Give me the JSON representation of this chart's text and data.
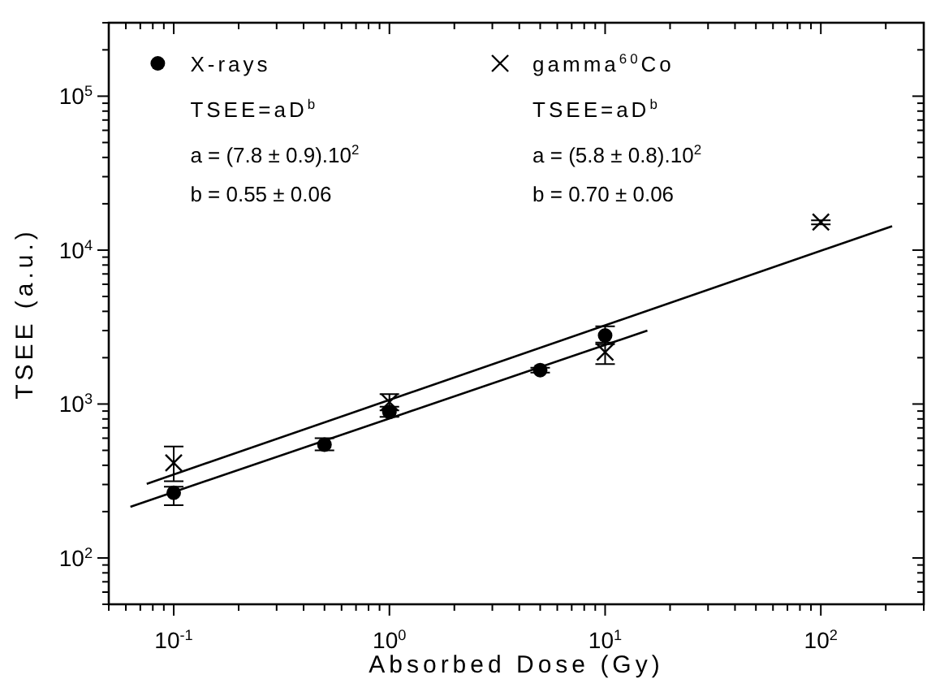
{
  "chart_data": {
    "type": "scatter",
    "xlabel": "Absorbed Dose (Gy)",
    "ylabel": "TSEE  (a.u.)",
    "log": "xy",
    "grid": false,
    "legend": "top",
    "xlim": [
      0.05,
      300
    ],
    "ylim": [
      50,
      300000
    ],
    "xticks": [
      {
        "value": 0.05,
        "label": null
      },
      {
        "value": 0.06,
        "label": null
      },
      {
        "value": 0.07,
        "label": null
      },
      {
        "value": 0.08,
        "label": null
      },
      {
        "value": 0.09,
        "label": null
      },
      {
        "value": 0.1,
        "label": "10$^{-1}$"
      },
      {
        "value": 0.2,
        "label": null
      },
      {
        "value": 0.3,
        "label": null
      },
      {
        "value": 0.4,
        "label": null
      },
      {
        "value": 0.5,
        "label": null
      },
      {
        "value": 0.6,
        "label": null
      },
      {
        "value": 0.7,
        "label": null
      },
      {
        "value": 0.8,
        "label": null
      },
      {
        "value": 0.9,
        "label": null
      },
      {
        "value": 1,
        "label": "10$^{0}$"
      },
      {
        "value": 2,
        "label": null
      },
      {
        "value": 3,
        "label": null
      },
      {
        "value": 4,
        "label": null
      },
      {
        "value": 5,
        "label": null
      },
      {
        "value": 6,
        "label": null
      },
      {
        "value": 7,
        "label": null
      },
      {
        "value": 8,
        "label": null
      },
      {
        "value": 9,
        "label": null
      },
      {
        "value": 10,
        "label": "10$^{1}$"
      },
      {
        "value": 20,
        "label": null
      },
      {
        "value": 30,
        "label": null
      },
      {
        "value": 40,
        "label": null
      },
      {
        "value": 50,
        "label": null
      },
      {
        "value": 60,
        "label": null
      },
      {
        "value": 70,
        "label": null
      },
      {
        "value": 80,
        "label": null
      },
      {
        "value": 90,
        "label": null
      },
      {
        "value": 100,
        "label": "10$^{2}$"
      },
      {
        "value": 200,
        "label": null
      },
      {
        "value": 300,
        "label": null
      }
    ],
    "yticks": [
      {
        "value": 50,
        "label": null
      },
      {
        "value": 60,
        "label": null
      },
      {
        "value": 70,
        "label": null
      },
      {
        "value": 80,
        "label": null
      },
      {
        "value": 90,
        "label": null
      },
      {
        "value": 100,
        "label": "10$^{2}$"
      },
      {
        "value": 200,
        "label": null
      },
      {
        "value": 300,
        "label": null
      },
      {
        "value": 400,
        "label": null
      },
      {
        "value": 500,
        "label": null
      },
      {
        "value": 600,
        "label": null
      },
      {
        "value": 700,
        "label": null
      },
      {
        "value": 800,
        "label": null
      },
      {
        "value": 900,
        "label": null
      },
      {
        "value": 1000,
        "label": "10$^{3}$"
      },
      {
        "value": 2000,
        "label": null
      },
      {
        "value": 3000,
        "label": null
      },
      {
        "value": 4000,
        "label": null
      },
      {
        "value": 5000,
        "label": null
      },
      {
        "value": 6000,
        "label": null
      },
      {
        "value": 7000,
        "label": null
      },
      {
        "value": 8000,
        "label": null
      },
      {
        "value": 9000,
        "label": null
      },
      {
        "value": 10000,
        "label": "10$^{4}$"
      },
      {
        "value": 20000,
        "label": null
      },
      {
        "value": 30000,
        "label": null
      },
      {
        "value": 40000,
        "label": null
      },
      {
        "value": 50000,
        "label": null
      },
      {
        "value": 60000,
        "label": null
      },
      {
        "value": 70000,
        "label": null
      },
      {
        "value": 80000,
        "label": null
      },
      {
        "value": 90000,
        "label": null
      },
      {
        "value": 100000,
        "label": "10$^{5}$"
      },
      {
        "value": 200000,
        "label": null
      },
      {
        "value": 300000,
        "label": null
      }
    ],
    "annotations": [
      "TSEE=aD$^{b}$",
      "a = (7.8  ±  0.9).10$^{2}$",
      "b = 0.55  ±  0.06",
      "TSEE=aD$^{b}$",
      "a = (5.8  ±  0.8).10$^{2}$",
      "b = 0.70  ±  0.06"
    ],
    "series": [
      {
        "name": "X-rays",
        "marker": "circle",
        "color": "#000000",
        "x": [
          0.1,
          0.5,
          1,
          5,
          10
        ],
        "values": [
          265,
          545,
          890,
          1660,
          2790
        ],
        "errors": [
          [
            220,
            290
          ],
          [
            500,
            600
          ],
          [
            825,
            960
          ],
          [
            1600,
            1720
          ],
          [
            2450,
            3200
          ]
        ]
      },
      {
        "name": "gamma$^{60}$Co",
        "marker": "cross",
        "color": "#000000",
        "x": [
          0.1,
          1,
          10,
          100
        ],
        "values": [
          415,
          1030,
          2170,
          15200
        ],
        "errors": [
          [
            315,
            530
          ],
          [
            910,
            1160
          ],
          [
            1820,
            2510
          ],
          [
            14700,
            15600
          ]
        ]
      },
      {
        "type": "line",
        "color": "#000000",
        "x": [
          0.063,
          15.7
        ],
        "values": [
          215,
          3000
        ]
      },
      {
        "type": "line",
        "color": "#000000",
        "x": [
          0.075,
          214
        ],
        "values": [
          303,
          14300
        ]
      }
    ]
  }
}
